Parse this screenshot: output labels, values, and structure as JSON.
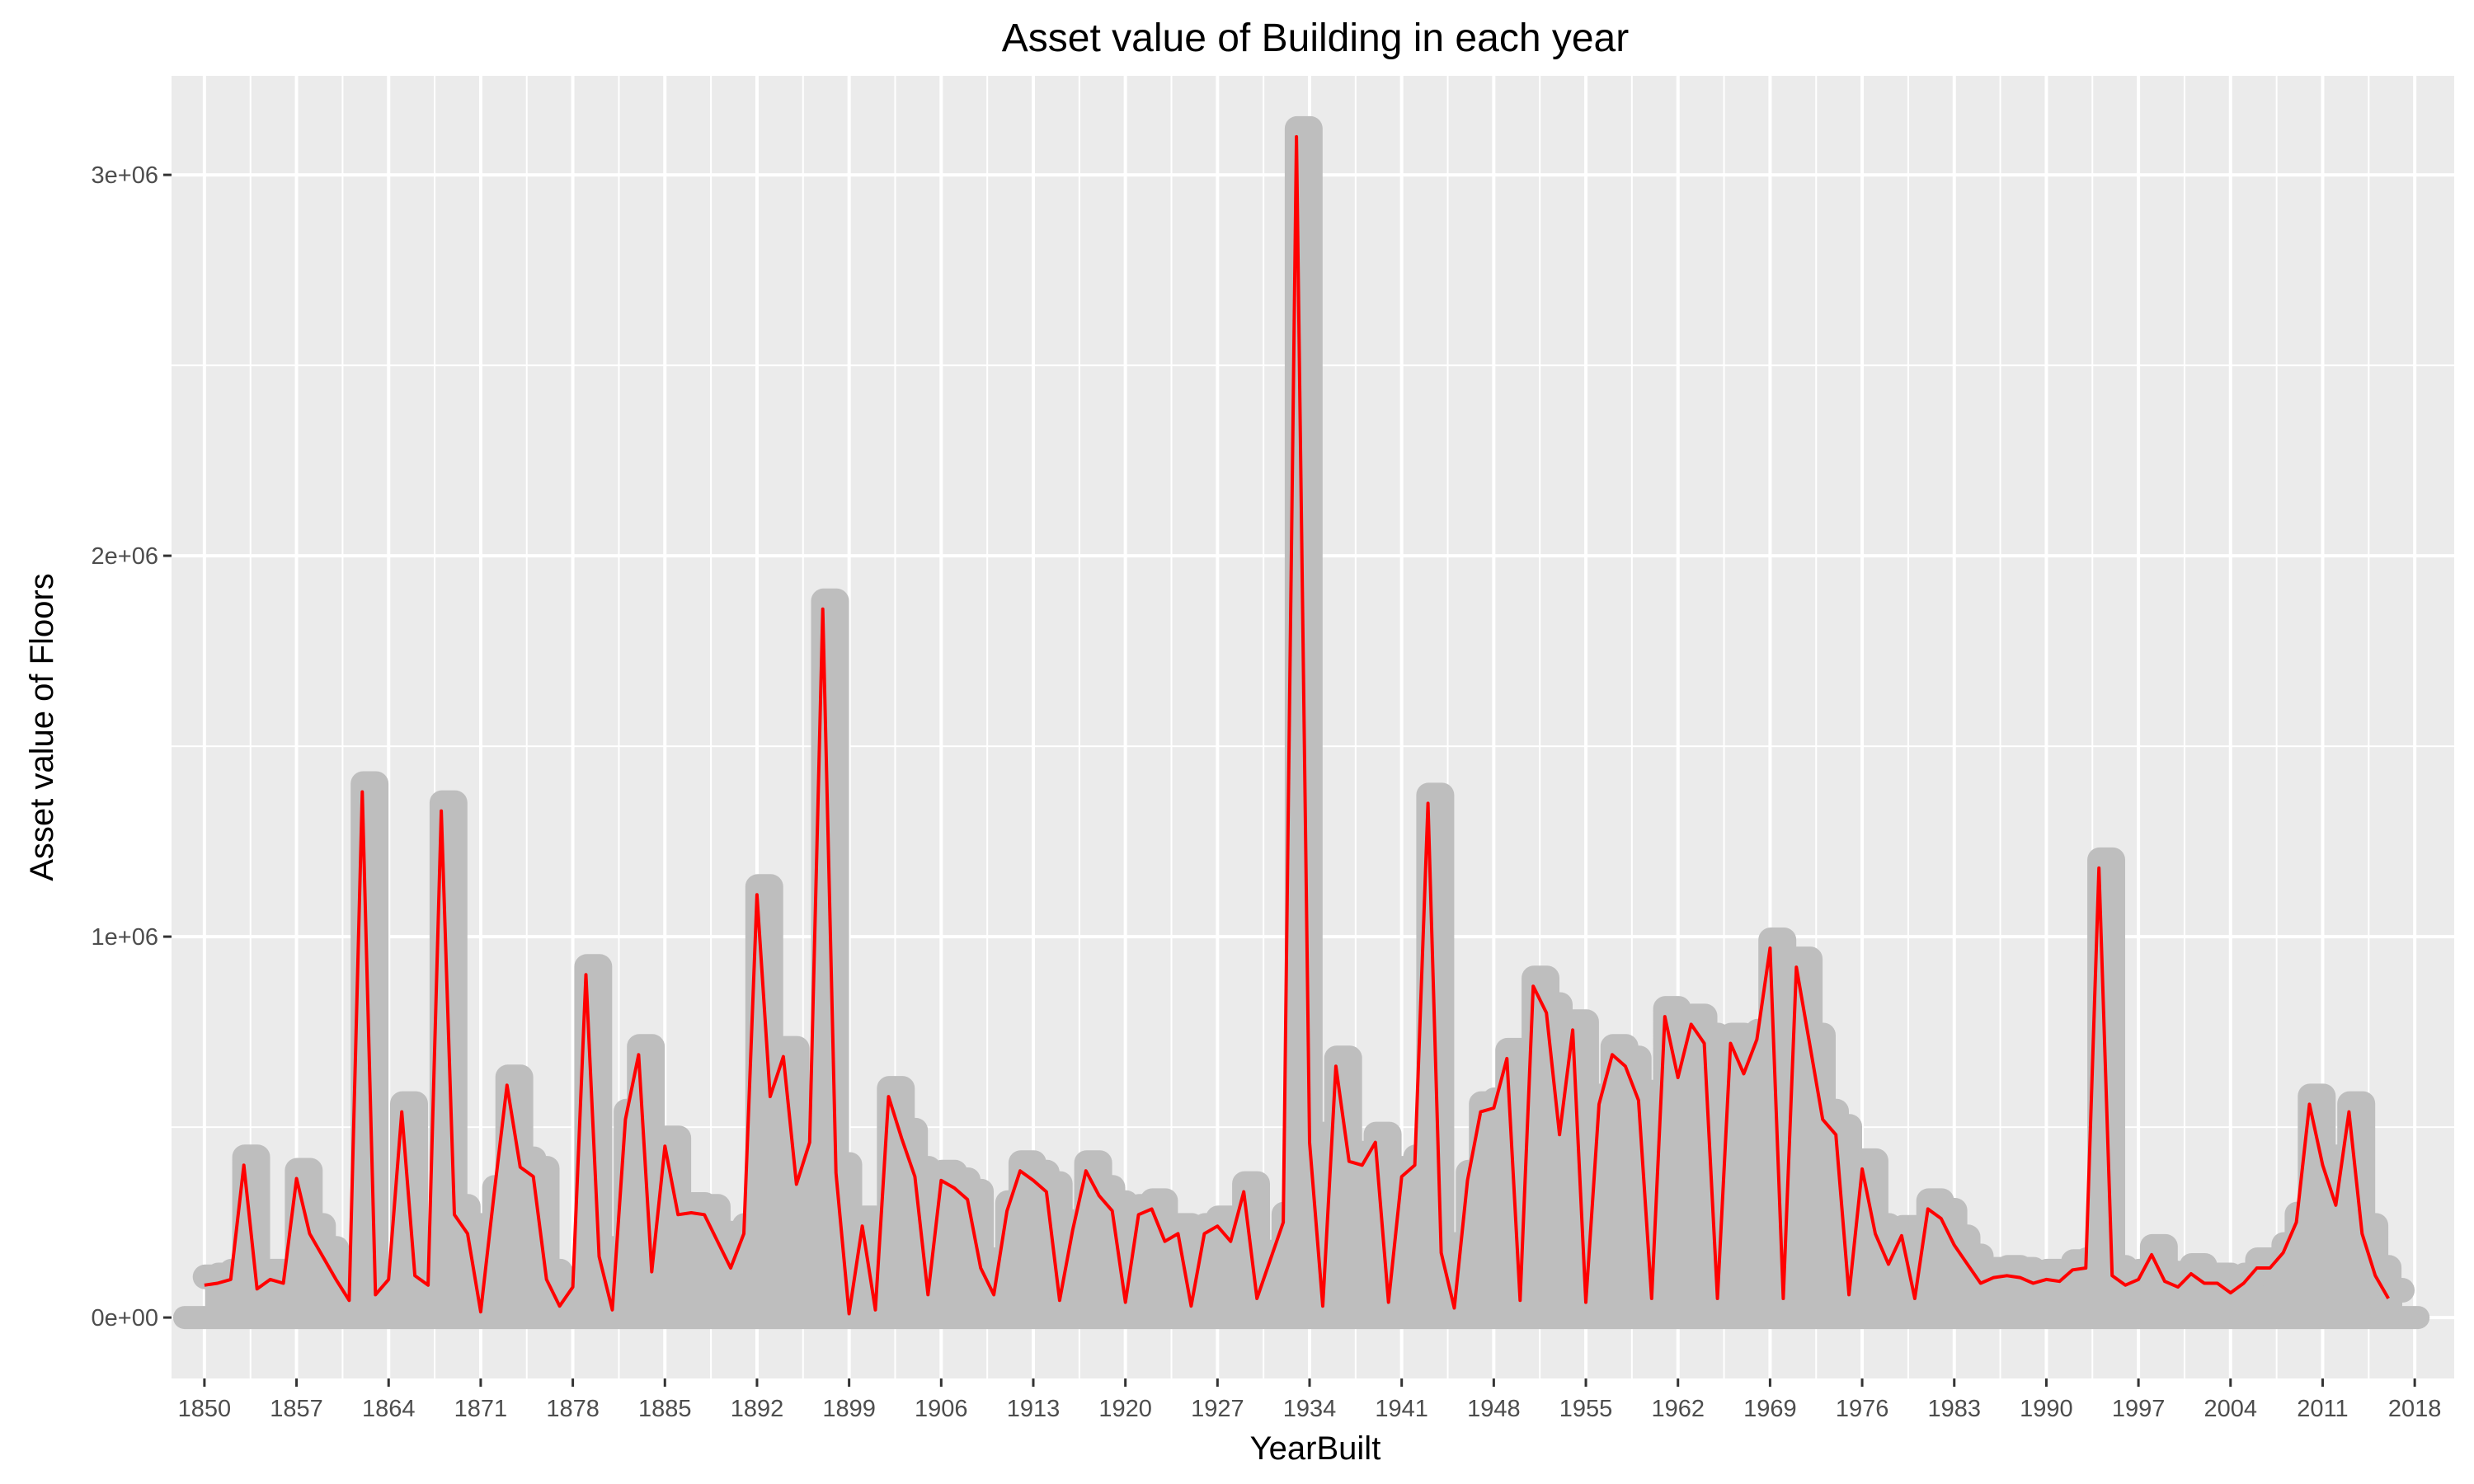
{
  "chart_data": {
    "type": "line",
    "title": "Asset value of Building in each year",
    "xlabel": "YearBuilt",
    "ylabel": "Asset value of Floors",
    "xlim": [
      1847.5,
      2021
    ],
    "ylim": [
      -160000,
      3260000
    ],
    "x_tick_labels": [
      "1850",
      "1857",
      "1864",
      "1871",
      "1878",
      "1885",
      "1892",
      "1899",
      "1906",
      "1913",
      "1920",
      "1927",
      "1934",
      "1941",
      "1948",
      "1955",
      "1962",
      "1969",
      "1976",
      "1983",
      "1990",
      "1997",
      "2004",
      "2011",
      "2018"
    ],
    "y_tick_labels": [
      "0e+00",
      "1e+06",
      "2e+06",
      "3e+06"
    ],
    "y_tick_values": [
      0,
      1000000,
      2000000,
      3000000
    ],
    "grid": true,
    "legend": "none",
    "colors": {
      "panel": "#ebebeb",
      "grid": "#ffffff",
      "shadow": "#bebebe",
      "line": "#ff0000"
    },
    "series": [
      {
        "x": [
          1850,
          1851,
          1852,
          1853,
          1854,
          1855,
          1856,
          1857,
          1858,
          1859,
          1860,
          1861,
          1862,
          1863,
          1864,
          1865,
          1866,
          1867,
          1868,
          1869,
          1870,
          1871,
          1872,
          1873,
          1874,
          1875,
          1876,
          1877,
          1878,
          1879,
          1880,
          1881,
          1882,
          1883,
          1884,
          1885,
          1886,
          1887,
          1888,
          1889,
          1890,
          1891,
          1892,
          1893,
          1894,
          1895,
          1896,
          1897,
          1898,
          1899,
          1900,
          1901,
          1902,
          1903,
          1904,
          1905,
          1906,
          1907,
          1908,
          1909,
          1910,
          1911,
          1912,
          1913,
          1914,
          1915,
          1916,
          1917,
          1918,
          1919,
          1920,
          1921,
          1922,
          1923,
          1924,
          1925,
          1926,
          1927,
          1928,
          1929,
          1930,
          1931,
          1932,
          1933,
          1934,
          1935,
          1936,
          1937,
          1938,
          1939,
          1940,
          1941,
          1942,
          1943,
          1944,
          1945,
          1946,
          1947,
          1948,
          1949,
          1950,
          1951,
          1952,
          1953,
          1954,
          1955,
          1956,
          1957,
          1958,
          1959,
          1960,
          1961,
          1962,
          1963,
          1964,
          1965,
          1966,
          1967,
          1968,
          1969,
          1970,
          1971,
          1972,
          1973,
          1974,
          1975,
          1976,
          1977,
          1978,
          1979,
          1980,
          1981,
          1982,
          1983,
          1984,
          1985,
          1986,
          1987,
          1988,
          1989,
          1990,
          1991,
          1992,
          1993,
          1994,
          1995,
          1996,
          1997,
          1998,
          1999,
          2000,
          2001,
          2002,
          2003,
          2004,
          2005,
          2006,
          2007,
          2008,
          2009,
          2010,
          2011,
          2012,
          2013,
          2014,
          2015,
          2016
        ],
        "y": [
          85000,
          90000,
          100000,
          400000,
          75000,
          100000,
          90000,
          365000,
          220000,
          160000,
          100000,
          45000,
          1380000,
          60000,
          100000,
          540000,
          110000,
          85000,
          1330000,
          270000,
          220000,
          15000,
          320000,
          610000,
          395000,
          370000,
          100000,
          30000,
          80000,
          900000,
          160000,
          20000,
          520000,
          690000,
          120000,
          450000,
          270000,
          275000,
          270000,
          200000,
          130000,
          220000,
          1110000,
          580000,
          685000,
          350000,
          460000,
          1860000,
          380000,
          10000,
          240000,
          20000,
          580000,
          470000,
          370000,
          60000,
          360000,
          340000,
          310000,
          130000,
          60000,
          280000,
          385000,
          360000,
          330000,
          45000,
          230000,
          385000,
          320000,
          280000,
          40000,
          270000,
          285000,
          200000,
          220000,
          30000,
          220000,
          240000,
          200000,
          330000,
          50000,
          150000,
          250000,
          3100000,
          460000,
          30000,
          660000,
          410000,
          400000,
          460000,
          40000,
          370000,
          400000,
          1350000,
          170000,
          25000,
          360000,
          540000,
          550000,
          680000,
          45000,
          870000,
          800000,
          480000,
          755000,
          40000,
          560000,
          690000,
          660000,
          570000,
          50000,
          790000,
          630000,
          770000,
          720000,
          50000,
          720000,
          640000,
          730000,
          970000,
          50000,
          920000,
          720000,
          520000,
          480000,
          60000,
          390000,
          220000,
          140000,
          215000,
          50000,
          285000,
          260000,
          190000,
          140000,
          90000,
          105000,
          110000,
          105000,
          90000,
          100000,
          95000,
          125000,
          130000,
          1180000,
          110000,
          85000,
          100000,
          165000,
          95000,
          80000,
          115000,
          90000,
          90000,
          65000,
          90000,
          130000,
          130000,
          170000,
          250000,
          560000,
          400000,
          295000,
          540000,
          220000,
          110000,
          50000
        ]
      }
    ]
  }
}
